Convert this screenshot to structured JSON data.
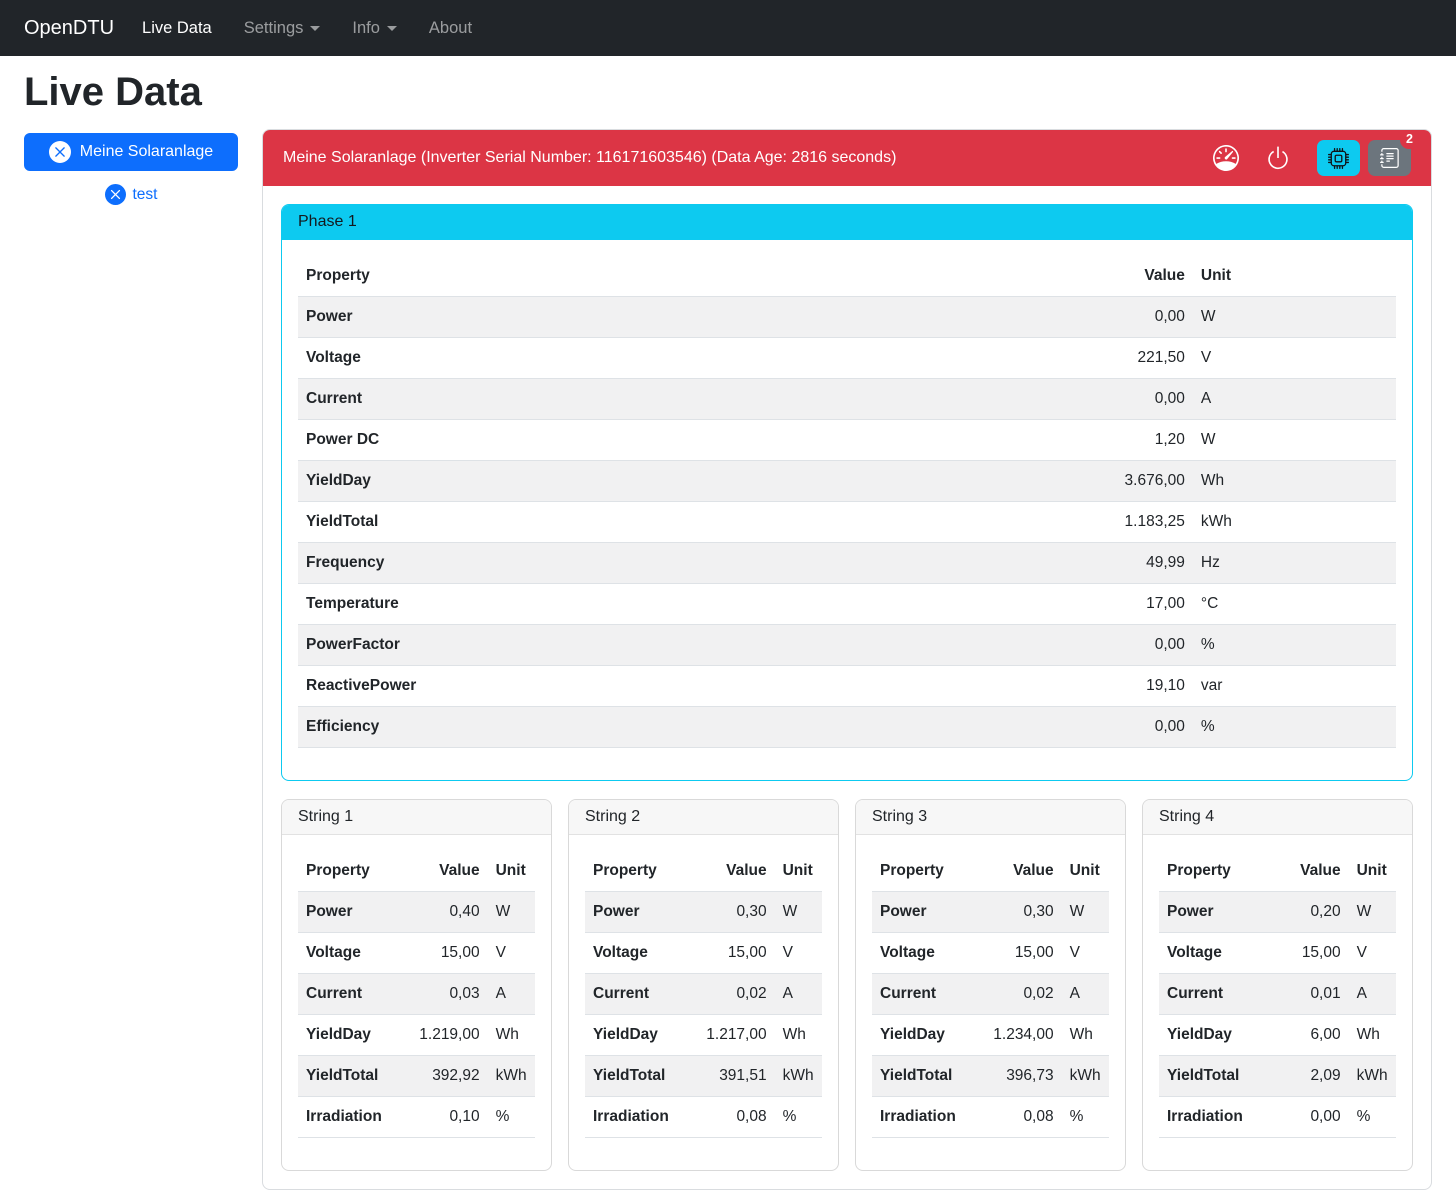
{
  "navbar": {
    "brand": "OpenDTU",
    "items": [
      {
        "label": "Live Data",
        "active": true,
        "dropdown": false
      },
      {
        "label": "Settings",
        "active": false,
        "dropdown": true
      },
      {
        "label": "Info",
        "active": false,
        "dropdown": true
      },
      {
        "label": "About",
        "active": false,
        "dropdown": false
      }
    ]
  },
  "page": {
    "title": "Live Data"
  },
  "sidebar": {
    "inverters": [
      {
        "label": "Meine Solaranlage",
        "selected": true,
        "icon": "x-circle-icon"
      },
      {
        "label": "test",
        "selected": false,
        "icon": "x-circle-icon"
      }
    ]
  },
  "inverter_panel": {
    "header_text": "Meine Solaranlage (Inverter Serial Number: 116171603546) (Data Age: 2816 seconds)",
    "toolbar": {
      "icons": [
        "speedometer-icon",
        "power-icon",
        "cpu-icon",
        "journal-icon"
      ],
      "badge_count": "2"
    },
    "phase": {
      "title": "Phase 1",
      "columns": {
        "property": "Property",
        "value": "Value",
        "unit": "Unit"
      },
      "rows": [
        [
          "Power",
          "0,00",
          "W"
        ],
        [
          "Voltage",
          "221,50",
          "V"
        ],
        [
          "Current",
          "0,00",
          "A"
        ],
        [
          "Power DC",
          "1,20",
          "W"
        ],
        [
          "YieldDay",
          "3.676,00",
          "Wh"
        ],
        [
          "YieldTotal",
          "1.183,25",
          "kWh"
        ],
        [
          "Frequency",
          "49,99",
          "Hz"
        ],
        [
          "Temperature",
          "17,00",
          "°C"
        ],
        [
          "PowerFactor",
          "0,00",
          "%"
        ],
        [
          "ReactivePower",
          "19,10",
          "var"
        ],
        [
          "Efficiency",
          "0,00",
          "%"
        ]
      ]
    },
    "strings": [
      {
        "title": "String 1",
        "columns": {
          "property": "Property",
          "value": "Value",
          "unit": "Unit"
        },
        "rows": [
          [
            "Power",
            "0,40",
            "W"
          ],
          [
            "Voltage",
            "15,00",
            "V"
          ],
          [
            "Current",
            "0,03",
            "A"
          ],
          [
            "YieldDay",
            "1.219,00",
            "Wh"
          ],
          [
            "YieldTotal",
            "392,92",
            "kWh"
          ],
          [
            "Irradiation",
            "0,10",
            "%"
          ]
        ]
      },
      {
        "title": "String 2",
        "columns": {
          "property": "Property",
          "value": "Value",
          "unit": "Unit"
        },
        "rows": [
          [
            "Power",
            "0,30",
            "W"
          ],
          [
            "Voltage",
            "15,00",
            "V"
          ],
          [
            "Current",
            "0,02",
            "A"
          ],
          [
            "YieldDay",
            "1.217,00",
            "Wh"
          ],
          [
            "YieldTotal",
            "391,51",
            "kWh"
          ],
          [
            "Irradiation",
            "0,08",
            "%"
          ]
        ]
      },
      {
        "title": "String 3",
        "columns": {
          "property": "Property",
          "value": "Value",
          "unit": "Unit"
        },
        "rows": [
          [
            "Power",
            "0,30",
            "W"
          ],
          [
            "Voltage",
            "15,00",
            "V"
          ],
          [
            "Current",
            "0,02",
            "A"
          ],
          [
            "YieldDay",
            "1.234,00",
            "Wh"
          ],
          [
            "YieldTotal",
            "396,73",
            "kWh"
          ],
          [
            "Irradiation",
            "0,08",
            "%"
          ]
        ]
      },
      {
        "title": "String 4",
        "columns": {
          "property": "Property",
          "value": "Value",
          "unit": "Unit"
        },
        "rows": [
          [
            "Power",
            "0,20",
            "W"
          ],
          [
            "Voltage",
            "15,00",
            "V"
          ],
          [
            "Current",
            "0,01",
            "A"
          ],
          [
            "YieldDay",
            "6,00",
            "Wh"
          ],
          [
            "YieldTotal",
            "2,09",
            "kWh"
          ],
          [
            "Irradiation",
            "0,00",
            "%"
          ]
        ]
      }
    ]
  },
  "colors": {
    "navbar_bg": "#212529",
    "danger": "#dc3545",
    "info": "#0dcaf0",
    "primary": "#0d6efd",
    "secondary": "#6c757d",
    "stripe": "#f1f1f2"
  }
}
